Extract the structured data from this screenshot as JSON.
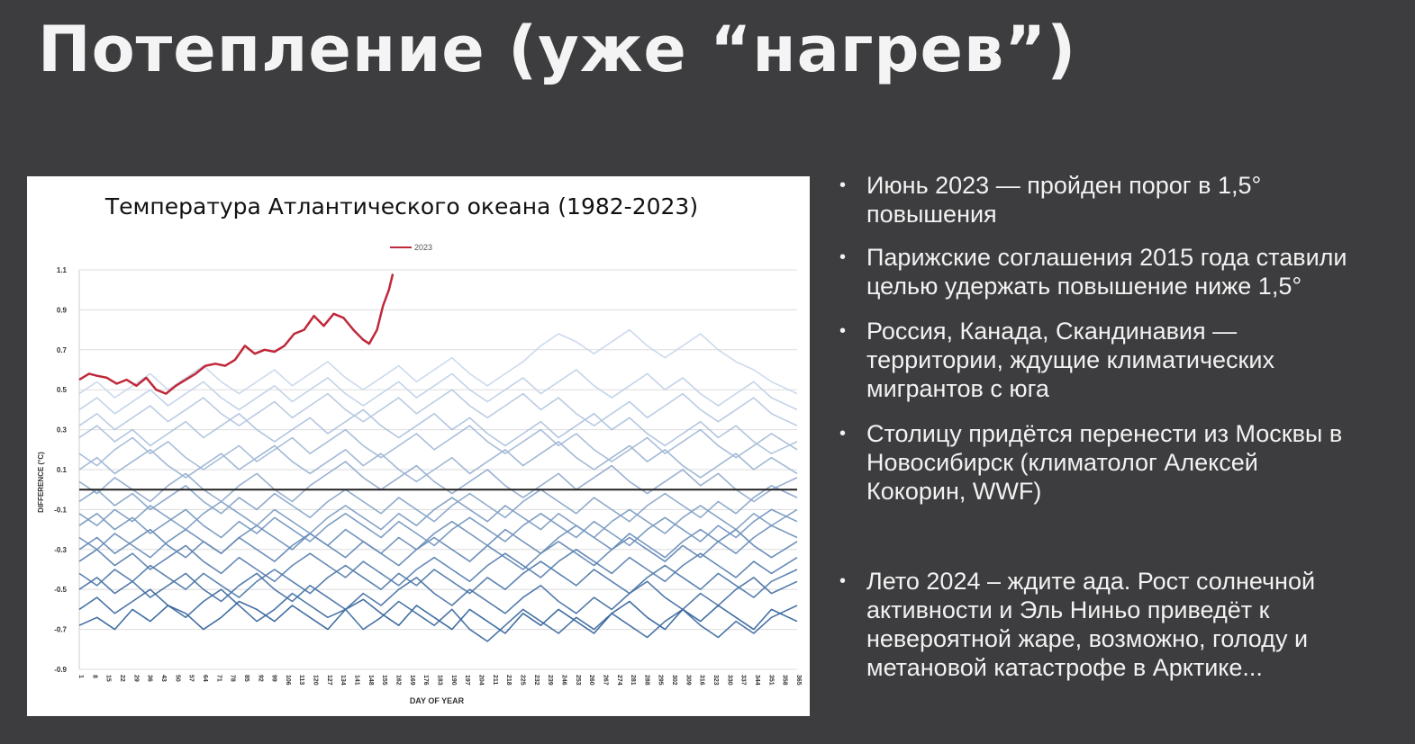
{
  "slide": {
    "title": "Потепление (уже “нагрев”)"
  },
  "bullets": [
    {
      "lines": [
        "Июнь 2023 — пройден порог в 1,5°",
        "повышения"
      ]
    },
    {
      "lines": [
        "Парижские соглашения 2015 года ставили",
        "целью удержать повышение ниже 1,5°"
      ]
    },
    {
      "lines": [
        "Россия, Канада, Скандинавия —",
        "территории, ждущие климатических",
        "мигрантов с юга"
      ]
    },
    {
      "lines": [
        "Столицу придётся перенести из Москвы в",
        "Новосибирск (климатолог Алексей",
        "Кокорин, WWF)"
      ]
    },
    {
      "lines": [
        "Лето 2024 – ждите ада. Рост солнечной",
        "активности и Эль Ниньо приведёт к",
        "невероятной жаре, возможно, голоду и",
        "метановой катастрофе в Арктике..."
      ]
    }
  ],
  "colors": {
    "background": "#3d3c3e",
    "text": "#f2f2f2",
    "highlight_series": "#c0283a",
    "historic_series_dark": "#2c5e98",
    "historic_series_light": "#c8d6ea"
  },
  "chart_data": {
    "type": "line",
    "title": "Температура Атлантического океана (1982-2023)",
    "xlabel": "DAY OF YEAR",
    "ylabel": "DIFFERENCE (°C)",
    "xlim": [
      1,
      365
    ],
    "ylim": [
      -0.9,
      1.1
    ],
    "yticks": [
      1.1,
      0.9,
      0.7,
      0.5,
      0.3,
      0.1,
      -0.1,
      -0.3,
      -0.5,
      -0.7,
      -0.9
    ],
    "xticks": [
      1,
      8,
      15,
      22,
      29,
      36,
      43,
      50,
      57,
      64,
      71,
      78,
      85,
      92,
      99,
      106,
      113,
      120,
      127,
      134,
      141,
      148,
      155,
      162,
      169,
      176,
      183,
      190,
      197,
      204,
      211,
      218,
      225,
      232,
      239,
      246,
      253,
      260,
      267,
      274,
      281,
      288,
      295,
      302,
      309,
      316,
      323,
      330,
      337,
      344,
      351,
      358,
      365
    ],
    "grid": true,
    "legend_position": "top-center",
    "zero_line": 0,
    "highlight": {
      "name": "2023",
      "x": [
        1,
        6,
        10,
        15,
        20,
        25,
        30,
        35,
        40,
        45,
        50,
        55,
        60,
        65,
        70,
        75,
        80,
        85,
        90,
        95,
        100,
        105,
        110,
        115,
        120,
        125,
        130,
        135,
        140,
        145,
        148,
        152,
        155,
        158,
        160
      ],
      "values": [
        0.55,
        0.58,
        0.57,
        0.56,
        0.53,
        0.55,
        0.52,
        0.56,
        0.5,
        0.48,
        0.52,
        0.55,
        0.58,
        0.62,
        0.63,
        0.62,
        0.65,
        0.72,
        0.68,
        0.7,
        0.69,
        0.72,
        0.78,
        0.8,
        0.87,
        0.82,
        0.88,
        0.86,
        0.8,
        0.75,
        0.73,
        0.8,
        0.92,
        1.0,
        1.08
      ]
    },
    "historic": {
      "count": 41,
      "x": [
        1,
        10,
        19,
        28,
        37,
        46,
        55,
        64,
        73,
        82,
        91,
        100,
        109,
        118,
        127,
        136,
        145,
        154,
        163,
        172,
        181,
        190,
        199,
        208,
        217,
        226,
        235,
        244,
        253,
        262,
        271,
        280,
        289,
        298,
        307,
        316,
        325,
        334,
        343,
        352,
        365
      ],
      "values": [
        [
          -0.68,
          -0.64,
          -0.7,
          -0.6,
          -0.66,
          -0.58,
          -0.62,
          -0.7,
          -0.64,
          -0.56,
          -0.6,
          -0.66,
          -0.58,
          -0.64,
          -0.7,
          -0.6,
          -0.55,
          -0.62,
          -0.68,
          -0.58,
          -0.64,
          -0.7,
          -0.6,
          -0.66,
          -0.72,
          -0.62,
          -0.68,
          -0.6,
          -0.66,
          -0.72,
          -0.62,
          -0.56,
          -0.64,
          -0.7,
          -0.6,
          -0.66,
          -0.58,
          -0.64,
          -0.7,
          -0.6,
          -0.66
        ],
        [
          -0.6,
          -0.54,
          -0.62,
          -0.56,
          -0.5,
          -0.58,
          -0.64,
          -0.56,
          -0.5,
          -0.58,
          -0.66,
          -0.6,
          -0.52,
          -0.58,
          -0.64,
          -0.6,
          -0.7,
          -0.64,
          -0.56,
          -0.62,
          -0.68,
          -0.6,
          -0.7,
          -0.76,
          -0.68,
          -0.6,
          -0.66,
          -0.72,
          -0.64,
          -0.7,
          -0.62,
          -0.68,
          -0.74,
          -0.66,
          -0.6,
          -0.68,
          -0.74,
          -0.66,
          -0.72,
          -0.64,
          -0.58
        ],
        [
          -0.5,
          -0.44,
          -0.52,
          -0.46,
          -0.54,
          -0.48,
          -0.42,
          -0.5,
          -0.56,
          -0.48,
          -0.42,
          -0.5,
          -0.56,
          -0.48,
          -0.54,
          -0.6,
          -0.52,
          -0.58,
          -0.5,
          -0.44,
          -0.52,
          -0.58,
          -0.5,
          -0.56,
          -0.62,
          -0.54,
          -0.48,
          -0.56,
          -0.62,
          -0.54,
          -0.6,
          -0.52,
          -0.46,
          -0.54,
          -0.6,
          -0.52,
          -0.58,
          -0.5,
          -0.44,
          -0.52,
          -0.46
        ],
        [
          -0.42,
          -0.48,
          -0.4,
          -0.46,
          -0.38,
          -0.44,
          -0.5,
          -0.42,
          -0.48,
          -0.54,
          -0.46,
          -0.4,
          -0.46,
          -0.52,
          -0.44,
          -0.38,
          -0.44,
          -0.5,
          -0.42,
          -0.48,
          -0.4,
          -0.46,
          -0.52,
          -0.44,
          -0.5,
          -0.42,
          -0.36,
          -0.42,
          -0.48,
          -0.4,
          -0.46,
          -0.52,
          -0.44,
          -0.38,
          -0.44,
          -0.5,
          -0.42,
          -0.48,
          -0.54,
          -0.46,
          -0.4
        ],
        [
          -0.36,
          -0.3,
          -0.38,
          -0.32,
          -0.4,
          -0.34,
          -0.28,
          -0.36,
          -0.42,
          -0.34,
          -0.4,
          -0.46,
          -0.38,
          -0.32,
          -0.38,
          -0.44,
          -0.36,
          -0.42,
          -0.48,
          -0.4,
          -0.34,
          -0.4,
          -0.46,
          -0.38,
          -0.32,
          -0.38,
          -0.44,
          -0.36,
          -0.3,
          -0.36,
          -0.42,
          -0.34,
          -0.4,
          -0.46,
          -0.38,
          -0.32,
          -0.38,
          -0.44,
          -0.36,
          -0.42,
          -0.34
        ],
        [
          -0.3,
          -0.24,
          -0.32,
          -0.26,
          -0.2,
          -0.28,
          -0.34,
          -0.26,
          -0.32,
          -0.24,
          -0.3,
          -0.36,
          -0.28,
          -0.22,
          -0.28,
          -0.34,
          -0.26,
          -0.32,
          -0.38,
          -0.3,
          -0.24,
          -0.3,
          -0.36,
          -0.28,
          -0.34,
          -0.4,
          -0.32,
          -0.26,
          -0.32,
          -0.38,
          -0.3,
          -0.24,
          -0.3,
          -0.36,
          -0.28,
          -0.34,
          -0.26,
          -0.2,
          -0.28,
          -0.34,
          -0.26
        ],
        [
          -0.24,
          -0.3,
          -0.22,
          -0.28,
          -0.34,
          -0.26,
          -0.2,
          -0.26,
          -0.32,
          -0.24,
          -0.18,
          -0.24,
          -0.3,
          -0.22,
          -0.28,
          -0.2,
          -0.26,
          -0.32,
          -0.24,
          -0.3,
          -0.22,
          -0.16,
          -0.22,
          -0.28,
          -0.2,
          -0.26,
          -0.32,
          -0.24,
          -0.18,
          -0.24,
          -0.3,
          -0.22,
          -0.28,
          -0.34,
          -0.26,
          -0.2,
          -0.26,
          -0.32,
          -0.24,
          -0.18,
          -0.24
        ],
        [
          -0.18,
          -0.12,
          -0.2,
          -0.14,
          -0.22,
          -0.16,
          -0.1,
          -0.18,
          -0.24,
          -0.16,
          -0.22,
          -0.14,
          -0.2,
          -0.26,
          -0.18,
          -0.12,
          -0.18,
          -0.24,
          -0.16,
          -0.22,
          -0.28,
          -0.2,
          -0.14,
          -0.2,
          -0.26,
          -0.18,
          -0.12,
          -0.18,
          -0.24,
          -0.16,
          -0.22,
          -0.28,
          -0.2,
          -0.14,
          -0.2,
          -0.26,
          -0.18,
          -0.24,
          -0.16,
          -0.1,
          -0.16
        ],
        [
          -0.12,
          -0.18,
          -0.1,
          -0.16,
          -0.08,
          -0.14,
          -0.2,
          -0.12,
          -0.06,
          -0.12,
          -0.18,
          -0.1,
          -0.16,
          -0.22,
          -0.14,
          -0.08,
          -0.14,
          -0.2,
          -0.12,
          -0.18,
          -0.1,
          -0.04,
          -0.1,
          -0.16,
          -0.08,
          -0.14,
          -0.2,
          -0.12,
          -0.18,
          -0.24,
          -0.16,
          -0.1,
          -0.16,
          -0.22,
          -0.14,
          -0.08,
          -0.14,
          -0.2,
          -0.12,
          -0.18,
          -0.1
        ],
        [
          -0.06,
          0.0,
          -0.08,
          -0.02,
          -0.1,
          -0.04,
          0.02,
          -0.06,
          -0.12,
          -0.04,
          -0.1,
          -0.02,
          -0.08,
          -0.14,
          -0.06,
          0.0,
          -0.06,
          -0.12,
          -0.04,
          -0.1,
          -0.16,
          -0.08,
          -0.02,
          -0.08,
          -0.14,
          -0.06,
          0.0,
          -0.06,
          -0.12,
          -0.04,
          -0.1,
          -0.16,
          -0.08,
          -0.02,
          -0.08,
          -0.14,
          -0.06,
          -0.12,
          -0.04,
          0.02,
          -0.04
        ],
        [
          0.04,
          -0.02,
          0.06,
          0.0,
          -0.06,
          0.02,
          0.08,
          0.0,
          -0.06,
          0.02,
          0.08,
          0.0,
          -0.06,
          0.02,
          0.08,
          0.14,
          0.06,
          0.0,
          0.06,
          0.12,
          0.04,
          -0.02,
          0.04,
          0.1,
          0.02,
          -0.04,
          0.02,
          0.08,
          0.0,
          0.06,
          0.12,
          0.04,
          -0.02,
          0.04,
          0.1,
          0.02,
          0.08,
          0.0,
          -0.06,
          0.0,
          0.06
        ],
        [
          0.1,
          0.16,
          0.08,
          0.14,
          0.2,
          0.12,
          0.06,
          0.12,
          0.18,
          0.1,
          0.16,
          0.22,
          0.14,
          0.08,
          0.14,
          0.2,
          0.12,
          0.18,
          0.1,
          0.04,
          0.1,
          0.16,
          0.08,
          0.14,
          0.2,
          0.12,
          0.18,
          0.24,
          0.16,
          0.1,
          0.16,
          0.22,
          0.14,
          0.2,
          0.12,
          0.06,
          0.12,
          0.18,
          0.1,
          0.16,
          0.08
        ],
        [
          0.18,
          0.12,
          0.2,
          0.26,
          0.18,
          0.24,
          0.16,
          0.1,
          0.16,
          0.22,
          0.14,
          0.2,
          0.26,
          0.18,
          0.24,
          0.3,
          0.22,
          0.16,
          0.22,
          0.28,
          0.2,
          0.26,
          0.32,
          0.24,
          0.18,
          0.24,
          0.3,
          0.22,
          0.28,
          0.2,
          0.14,
          0.2,
          0.26,
          0.18,
          0.24,
          0.3,
          0.22,
          0.16,
          0.22,
          0.28,
          0.2
        ],
        [
          0.26,
          0.32,
          0.24,
          0.3,
          0.22,
          0.28,
          0.34,
          0.26,
          0.32,
          0.38,
          0.3,
          0.24,
          0.3,
          0.36,
          0.28,
          0.34,
          0.4,
          0.32,
          0.26,
          0.32,
          0.38,
          0.3,
          0.36,
          0.28,
          0.22,
          0.28,
          0.34,
          0.26,
          0.32,
          0.38,
          0.3,
          0.36,
          0.28,
          0.22,
          0.28,
          0.34,
          0.26,
          0.32,
          0.24,
          0.18,
          0.24
        ],
        [
          0.32,
          0.38,
          0.3,
          0.36,
          0.42,
          0.34,
          0.4,
          0.46,
          0.38,
          0.32,
          0.38,
          0.44,
          0.36,
          0.42,
          0.48,
          0.4,
          0.34,
          0.4,
          0.46,
          0.38,
          0.44,
          0.5,
          0.42,
          0.36,
          0.42,
          0.48,
          0.4,
          0.46,
          0.38,
          0.32,
          0.38,
          0.44,
          0.36,
          0.42,
          0.48,
          0.4,
          0.34,
          0.4,
          0.46,
          0.38,
          0.32
        ],
        [
          0.4,
          0.46,
          0.38,
          0.44,
          0.5,
          0.42,
          0.48,
          0.54,
          0.46,
          0.4,
          0.46,
          0.52,
          0.44,
          0.5,
          0.56,
          0.48,
          0.42,
          0.48,
          0.54,
          0.46,
          0.52,
          0.58,
          0.5,
          0.44,
          0.5,
          0.56,
          0.48,
          0.54,
          0.6,
          0.52,
          0.46,
          0.52,
          0.58,
          0.5,
          0.56,
          0.48,
          0.42,
          0.48,
          0.54,
          0.46,
          0.4
        ],
        [
          0.48,
          0.54,
          0.46,
          0.52,
          0.58,
          0.5,
          0.56,
          0.62,
          0.54,
          0.48,
          0.54,
          0.6,
          0.52,
          0.58,
          0.64,
          0.56,
          0.5,
          0.56,
          0.62,
          0.54,
          0.6,
          0.66,
          0.58,
          0.52,
          0.58,
          0.64,
          0.72,
          0.78,
          0.74,
          0.68,
          0.74,
          0.8,
          0.72,
          0.66,
          0.72,
          0.78,
          0.7,
          0.64,
          0.6,
          0.54,
          0.48
        ]
      ]
    }
  }
}
